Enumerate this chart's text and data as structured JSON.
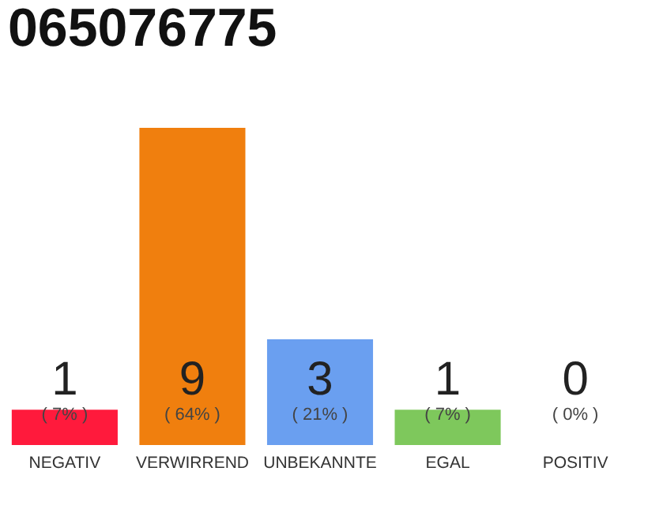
{
  "chart_data": {
    "type": "bar",
    "title": "065076775",
    "categories": [
      "NEGATIV",
      "VERWIRREND",
      "UNBEKANNTE",
      "EGAL",
      "POSITIV"
    ],
    "values": [
      1,
      9,
      3,
      1,
      0
    ],
    "colors": [
      "#ff1a3c",
      "#f07f0e",
      "#6a9ff0",
      "#7ec85c",
      "#22aa44"
    ],
    "value_labels": [
      "1",
      "9",
      "3",
      "1",
      "0"
    ],
    "annotations": [
      "( 7% )",
      "( 64% )",
      "( 21% )",
      "( 7% )",
      "( 0% )"
    ]
  }
}
